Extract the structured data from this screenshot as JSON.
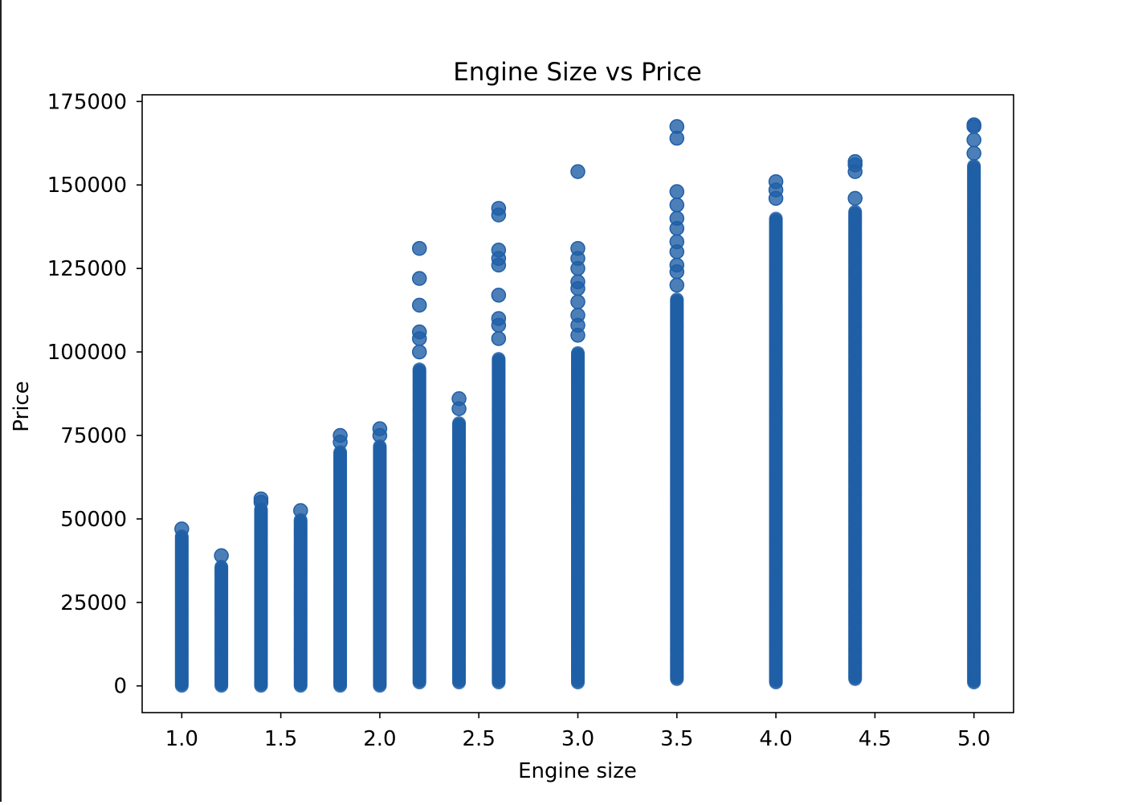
{
  "chart_data": {
    "type": "scatter",
    "title": "Engine Size vs Price",
    "xlabel": "Engine size",
    "ylabel": "Price",
    "xlim": [
      0.8,
      5.2
    ],
    "ylim": [
      -8000,
      177000
    ],
    "x_ticks": [
      1.0,
      1.5,
      2.0,
      2.5,
      3.0,
      3.5,
      4.0,
      4.5,
      5.0
    ],
    "x_tick_labels": [
      "1.0",
      "1.5",
      "2.0",
      "2.5",
      "3.0",
      "3.5",
      "4.0",
      "4.5",
      "5.0"
    ],
    "y_ticks": [
      0,
      25000,
      50000,
      75000,
      100000,
      125000,
      150000,
      175000
    ],
    "y_tick_labels": [
      "0",
      "25000",
      "50000",
      "75000",
      "100000",
      "125000",
      "150000",
      "175000"
    ],
    "grid": false,
    "marker_color": "#1f5fa6",
    "series": [
      {
        "columns": [
          {
            "x": 1.0,
            "min": 0,
            "max": 45000,
            "outliers": [
              47000
            ]
          },
          {
            "x": 1.2,
            "min": 0,
            "max": 36000,
            "outliers": [
              39000
            ]
          },
          {
            "x": 1.4,
            "min": 0,
            "max": 53000,
            "outliers": [
              55000,
              56000
            ]
          },
          {
            "x": 1.6,
            "min": 0,
            "max": 50000,
            "outliers": [
              52500
            ]
          },
          {
            "x": 1.8,
            "min": 0,
            "max": 70000,
            "outliers": [
              73000,
              75000
            ]
          },
          {
            "x": 2.0,
            "min": 0,
            "max": 72000,
            "outliers": [
              75000,
              77000
            ]
          },
          {
            "x": 2.2,
            "min": 1000,
            "max": 95000,
            "outliers": [
              100000,
              104000,
              106000,
              114000,
              122000,
              131000
            ]
          },
          {
            "x": 2.4,
            "min": 1000,
            "max": 79000,
            "outliers": [
              83000,
              86000
            ]
          },
          {
            "x": 2.6,
            "min": 1000,
            "max": 98000,
            "outliers": [
              104000,
              108000,
              110000,
              117000,
              126000,
              128000,
              130500,
              141000,
              143000
            ]
          },
          {
            "x": 3.0,
            "min": 1000,
            "max": 100000,
            "outliers": [
              105000,
              108000,
              111000,
              115000,
              119000,
              121000,
              125000,
              128000,
              131000,
              154000
            ]
          },
          {
            "x": 3.5,
            "min": 2000,
            "max": 116000,
            "outliers": [
              120000,
              124000,
              126000,
              130000,
              133000,
              137000,
              140000,
              144000,
              148000,
              164000,
              167500
            ]
          },
          {
            "x": 4.0,
            "min": 1000,
            "max": 140000,
            "outliers": [
              146000,
              148500,
              151000
            ]
          },
          {
            "x": 4.4,
            "min": 2000,
            "max": 142000,
            "outliers": [
              146000,
              154000,
              156000,
              157000
            ]
          },
          {
            "x": 5.0,
            "min": 1000,
            "max": 156000,
            "outliers": [
              159500,
              163500,
              167500,
              168000
            ]
          }
        ]
      }
    ]
  }
}
